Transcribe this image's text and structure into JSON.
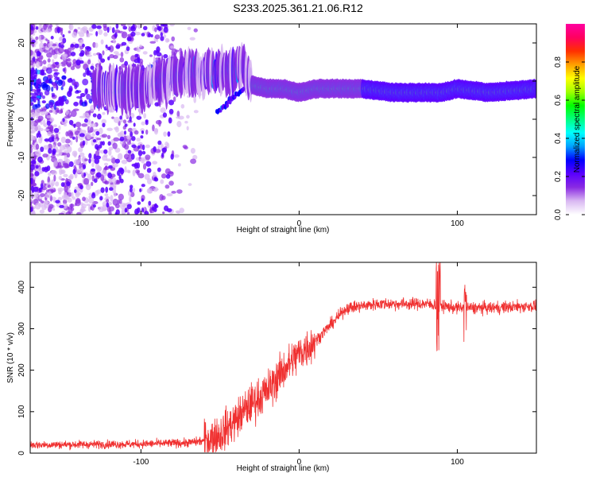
{
  "title": "S233.2025.361.21.06.R12",
  "chart_data": [
    {
      "type": "heatmap",
      "name": "spectrogram",
      "xlabel": "Height of straight line (km)",
      "ylabel": "Frequency (Hz)",
      "xlim": [
        -170,
        150
      ],
      "ylim": [
        -25,
        25
      ],
      "xticks": [
        -100,
        0,
        100
      ],
      "yticks": [
        -20,
        -10,
        0,
        10,
        20
      ],
      "colorbar": {
        "label": "Normalized spectral amplitude",
        "range": [
          0.0,
          1.0
        ],
        "ticks": [
          "0.0",
          "0.2",
          "0.4",
          "0.6",
          "0.8"
        ],
        "colors": [
          "#ffffff",
          "#d9b8f2",
          "#8a2be2",
          "#5a00ff",
          "#0000ff",
          "#00a0ff",
          "#00ffff",
          "#00ff80",
          "#00ff00",
          "#a0ff00",
          "#ffff00",
          "#ffa000",
          "#ff3000",
          "#ff0060",
          "#ff00a0"
        ]
      },
      "ridge": {
        "x": [
          -170,
          -140,
          -120,
          -100,
          -90,
          -80,
          -70,
          -60,
          -50,
          -40,
          -35,
          -30,
          -20,
          -10,
          0,
          10,
          20,
          40,
          60,
          80,
          90,
          100,
          120,
          150
        ],
        "freq": [
          8,
          8,
          8,
          8,
          10,
          11,
          12,
          12,
          12,
          13,
          14,
          9,
          8,
          8,
          7,
          8,
          8,
          8,
          7,
          7,
          7,
          8,
          7,
          8
        ]
      }
    },
    {
      "type": "line",
      "name": "snr",
      "xlabel": "Height of straight line (km)",
      "ylabel": "SNR (10 * v/v)",
      "xlim": [
        -170,
        150
      ],
      "ylim": [
        0,
        460
      ],
      "xticks": [
        -100,
        0,
        100
      ],
      "yticks": [
        0,
        100,
        200,
        300,
        400
      ],
      "color": "#f03030",
      "trend": {
        "x": [
          -170,
          -100,
          -70,
          -60,
          -50,
          -40,
          -30,
          -20,
          -10,
          0,
          10,
          20,
          30,
          50,
          80,
          100,
          120,
          150
        ],
        "y": [
          20,
          22,
          25,
          30,
          45,
          80,
          120,
          150,
          200,
          240,
          270,
          310,
          350,
          360,
          360,
          350,
          350,
          355
        ]
      }
    }
  ]
}
